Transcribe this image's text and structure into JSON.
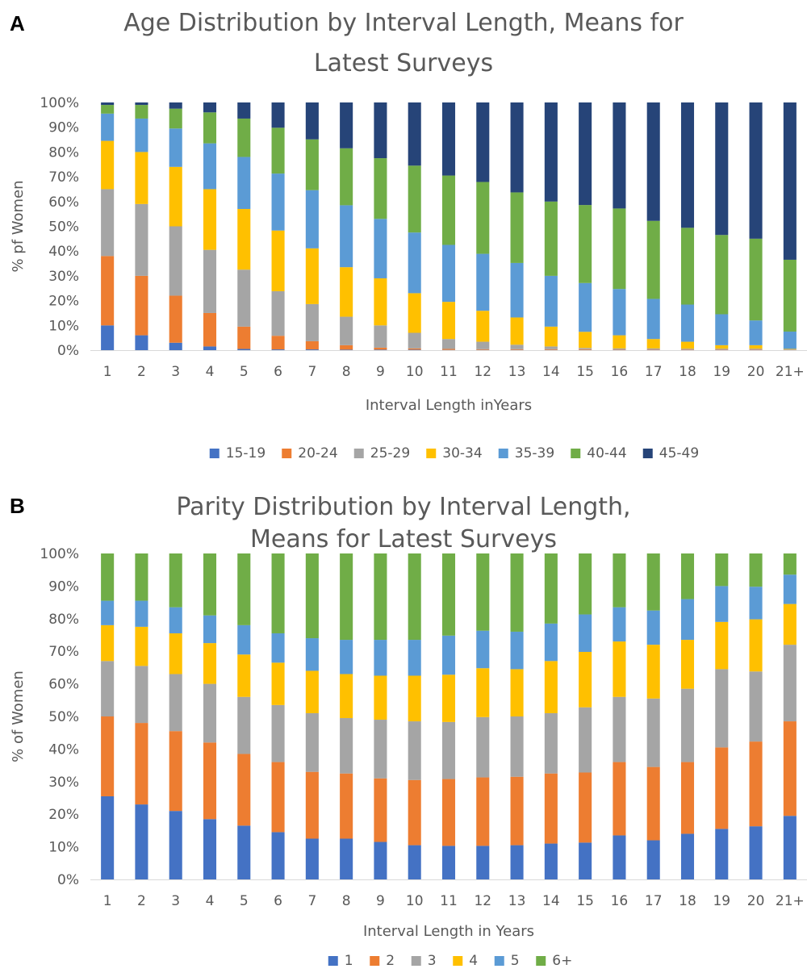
{
  "chart_data": [
    {
      "panel_label": "A",
      "type": "bar",
      "stacked": "percent",
      "title_lines": [
        "Age Distribution by Interval Length,  Means for",
        "Latest Surveys"
      ],
      "xlabel": "Interval Length inYears",
      "ylabel": "% pf Women",
      "ylim": [
        0,
        100
      ],
      "yticks": [
        "0%",
        "10%",
        "20%",
        "30%",
        "40%",
        "50%",
        "60%",
        "70%",
        "80%",
        "90%",
        "100%"
      ],
      "grid": false,
      "legend_position": "bottom",
      "categories": [
        "1",
        "2",
        "3",
        "4",
        "5",
        "6",
        "7",
        "8",
        "9",
        "10",
        "11",
        "12",
        "13",
        "14",
        "15",
        "16",
        "17",
        "18",
        "19",
        "20",
        "21+"
      ],
      "series": [
        {
          "name": "15-19",
          "color": "#4472C4",
          "values": [
            10,
            6,
            3,
            1.5,
            0.5,
            0.3,
            0.3,
            0.2,
            0.2,
            0.2,
            0.1,
            0.1,
            0.1,
            0.1,
            0.1,
            0.1,
            0.1,
            0.1,
            0.1,
            0.1,
            0
          ]
        },
        {
          "name": "20-24",
          "color": "#ED7D31",
          "values": [
            28,
            24,
            19,
            13.5,
            9,
            5.5,
            3.3,
            1.8,
            0.8,
            0.5,
            0.4,
            0.3,
            0.3,
            0.3,
            0.3,
            0.2,
            0.2,
            0.2,
            0.2,
            0.2,
            0.1
          ]
        },
        {
          "name": "25-29",
          "color": "#A5A5A5",
          "values": [
            27,
            29,
            28,
            25.5,
            23,
            18,
            15,
            11.5,
            9,
            6.3,
            4,
            3,
            1.8,
            1.1,
            0.5,
            0.4,
            0.4,
            0.3,
            0.3,
            0.3,
            0.2
          ]
        },
        {
          "name": "30-34",
          "color": "#FFC000",
          "values": [
            19.5,
            21,
            24,
            24.5,
            24.5,
            24.5,
            22.5,
            20,
            19,
            16,
            15,
            12.5,
            11,
            8,
            6.5,
            5.3,
            3.8,
            2.8,
            1.4,
            1.4,
            0.2
          ]
        },
        {
          "name": "35-39",
          "color": "#5B9BD5",
          "values": [
            11,
            13.5,
            15.5,
            18.5,
            21,
            23,
            23.5,
            25,
            24,
            24.5,
            23,
            23,
            22,
            20.5,
            19.7,
            18.7,
            16.2,
            15,
            12.5,
            10,
            7
          ]
        },
        {
          "name": "40-44",
          "color": "#70AD47",
          "values": [
            3.5,
            5.5,
            8,
            12.5,
            15.5,
            18.5,
            20.5,
            23,
            24.5,
            27,
            28,
            29,
            28.5,
            30,
            31.5,
            32.5,
            31.5,
            31,
            32,
            33,
            29
          ]
        },
        {
          "name": "45-49",
          "color": "#264478",
          "values": [
            1,
            1,
            2.5,
            4,
            6.5,
            10.2,
            14.9,
            18.5,
            22.5,
            25.5,
            29.5,
            32.1,
            36.3,
            40,
            41.4,
            42.8,
            47.8,
            50.6,
            53.5,
            55,
            63.5
          ]
        }
      ]
    },
    {
      "panel_label": "B",
      "type": "bar",
      "stacked": "percent",
      "title_lines": [
        "Parity Distribution by Interval Length,",
        "Means for Latest Surveys"
      ],
      "xlabel": "Interval Length in Years",
      "ylabel": "% of Women",
      "ylim": [
        0,
        100
      ],
      "yticks": [
        "0%",
        "10%",
        "20%",
        "30%",
        "40%",
        "50%",
        "60%",
        "70%",
        "80%",
        "90%",
        "100%"
      ],
      "grid": false,
      "legend_position": "bottom",
      "categories": [
        "1",
        "2",
        "3",
        "4",
        "5",
        "6",
        "7",
        "8",
        "9",
        "10",
        "11",
        "12",
        "13",
        "14",
        "15",
        "16",
        "17",
        "18",
        "19",
        "20",
        "21+"
      ],
      "series": [
        {
          "name": "1",
          "color": "#4472C4",
          "values": [
            25.5,
            23,
            21,
            18.5,
            16.5,
            14.5,
            12.5,
            12.5,
            11.5,
            10.5,
            10.3,
            10.3,
            10.5,
            11,
            11.3,
            13.5,
            12,
            14,
            15.5,
            16.3,
            19.5
          ]
        },
        {
          "name": "2",
          "color": "#ED7D31",
          "values": [
            24.5,
            25,
            24.5,
            23.5,
            22,
            21.5,
            20.5,
            20,
            19.5,
            20,
            20.5,
            21,
            21,
            21.5,
            21.5,
            22.5,
            22.5,
            22,
            25,
            26,
            29
          ]
        },
        {
          "name": "3",
          "color": "#A5A5A5",
          "values": [
            17,
            17.5,
            17.5,
            18,
            17.5,
            17.5,
            18,
            17,
            18,
            18,
            17.5,
            18.5,
            18.5,
            18.5,
            20,
            20,
            21,
            22.5,
            24,
            21.5,
            23.5
          ]
        },
        {
          "name": "4",
          "color": "#FFC000",
          "values": [
            11,
            12,
            12.5,
            12.5,
            13,
            13,
            13,
            13.5,
            13.5,
            14,
            14.5,
            15,
            14.5,
            16,
            17,
            17,
            16.5,
            15,
            14.5,
            16,
            12.5
          ]
        },
        {
          "name": "5",
          "color": "#5B9BD5",
          "values": [
            7.5,
            8,
            8,
            8.5,
            9,
            9,
            10,
            10.5,
            11,
            11,
            12,
            11.5,
            11.5,
            11.5,
            11.5,
            10.5,
            10.5,
            12.5,
            11,
            10,
            9
          ]
        },
        {
          "name": "6+",
          "color": "#70AD47",
          "values": [
            14.5,
            14.5,
            16.5,
            19,
            22,
            24.5,
            26,
            26.5,
            26.5,
            26.5,
            25.2,
            23.7,
            24,
            21.5,
            18.7,
            16.5,
            17.5,
            14,
            10,
            10.2,
            6.5
          ]
        }
      ]
    }
  ]
}
